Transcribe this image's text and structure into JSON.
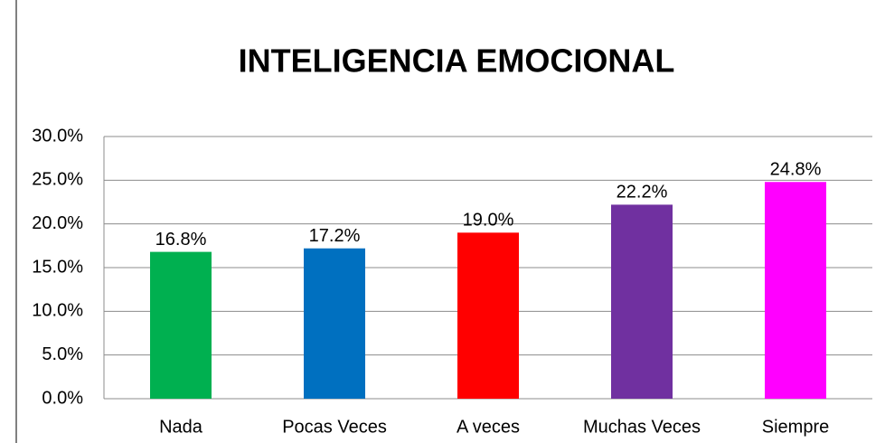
{
  "chart_data": {
    "type": "bar",
    "title": "INTELIGENCIA  EMOCIONAL",
    "categories": [
      "Nada",
      "Pocas Veces",
      "A veces",
      "Muchas Veces",
      "Siempre"
    ],
    "values": [
      16.8,
      17.2,
      19.0,
      22.2,
      24.8
    ],
    "value_labels": [
      "16.8%",
      "17.2%",
      "19.0%",
      "22.2%",
      "24.8%"
    ],
    "colors": [
      "#00b050",
      "#0070c0",
      "#ff0000",
      "#7030a0",
      "#ff00ff"
    ],
    "ylim": [
      0,
      30
    ],
    "yticks": [
      {
        "value": 0,
        "label": "0.0%"
      },
      {
        "value": 5,
        "label": "5.0%"
      },
      {
        "value": 10,
        "label": "10.0%"
      },
      {
        "value": 15,
        "label": "15.0%"
      },
      {
        "value": 20,
        "label": "20.0%"
      },
      {
        "value": 25,
        "label": "25.0%"
      },
      {
        "value": 30,
        "label": "30.0%"
      }
    ],
    "grid": true
  }
}
